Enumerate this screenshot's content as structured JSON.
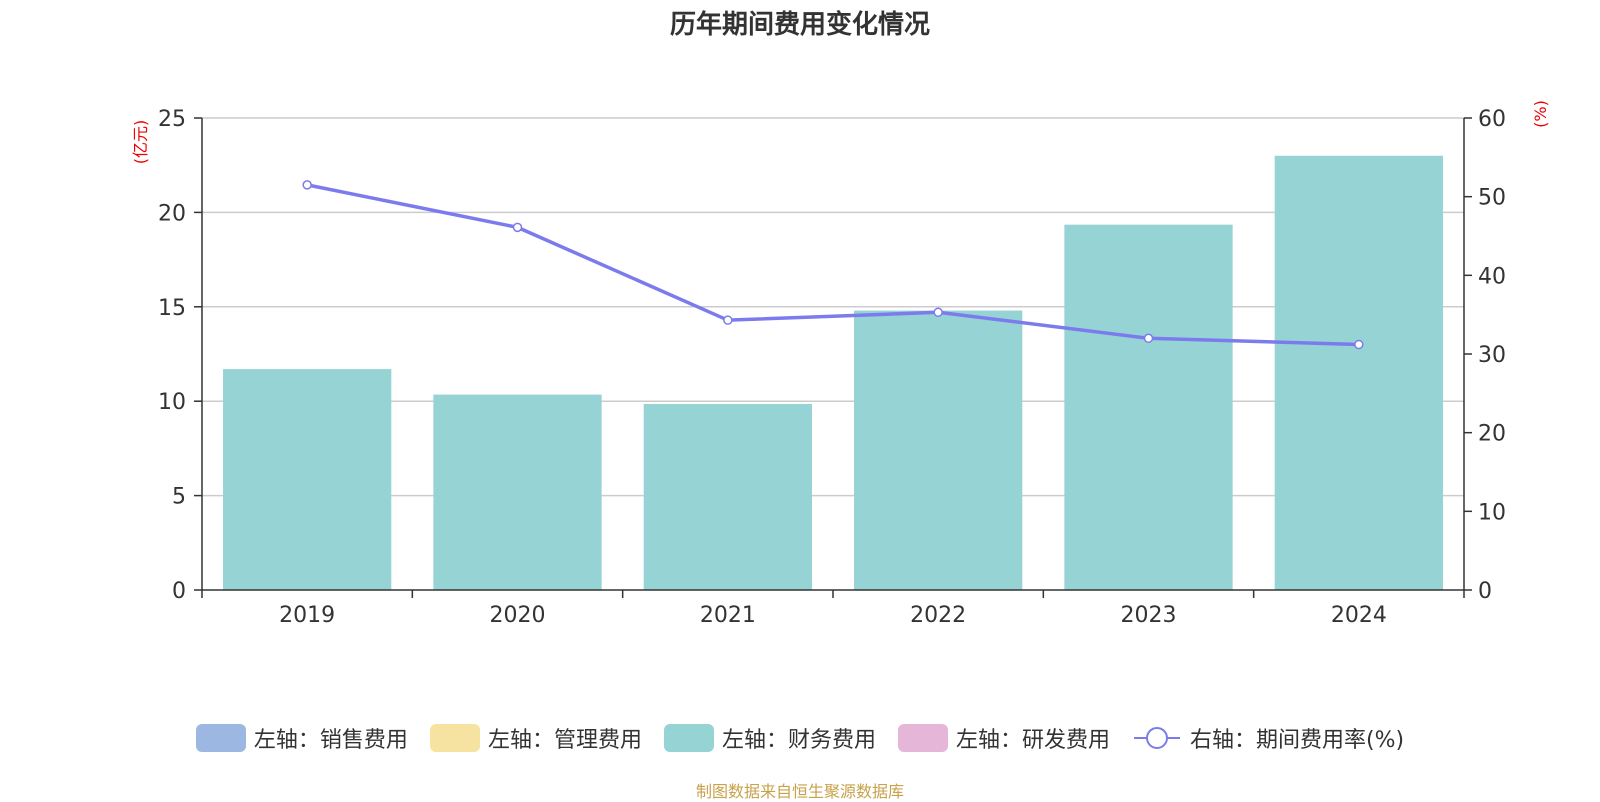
{
  "title": "历年期间费用变化情况",
  "source_note": "制图数据来自恒生聚源数据库",
  "legend": [
    {
      "label": "左轴：销售费用",
      "color": "#9db7e3",
      "kind": "swatch"
    },
    {
      "label": "左轴：管理费用",
      "color": "#f6e3a1",
      "kind": "swatch"
    },
    {
      "label": "左轴：财务费用",
      "color": "#96d3d4",
      "kind": "swatch"
    },
    {
      "label": "左轴：研发费用",
      "color": "#e6b6d8",
      "kind": "swatch"
    },
    {
      "label": "右轴：期间费用率(%)",
      "color": "#7b7bee",
      "kind": "line"
    }
  ],
  "chart_data": {
    "type": "bar",
    "title": "历年期间费用变化情况",
    "categories": [
      "2019",
      "2020",
      "2021",
      "2022",
      "2023",
      "2024"
    ],
    "series": [
      {
        "name": "左轴：财务费用",
        "axis": "left",
        "type": "bar",
        "color": "#96d3d4",
        "values": [
          11.7,
          10.35,
          9.85,
          14.8,
          19.35,
          23.0
        ]
      },
      {
        "name": "右轴：期间费用率(%)",
        "axis": "right",
        "type": "line",
        "color": "#7b7bee",
        "values": [
          51.5,
          46.1,
          34.3,
          35.3,
          32.0,
          31.2
        ]
      }
    ],
    "y_left": {
      "label": "(亿元)",
      "min": 0,
      "max": 25,
      "ticks": [
        0,
        5,
        10,
        15,
        20,
        25
      ]
    },
    "y_right": {
      "label": "(%)",
      "min": 0,
      "max": 60,
      "ticks": [
        0,
        10,
        20,
        30,
        40,
        50,
        60
      ]
    },
    "grid": true,
    "legend_position": "bottom"
  }
}
